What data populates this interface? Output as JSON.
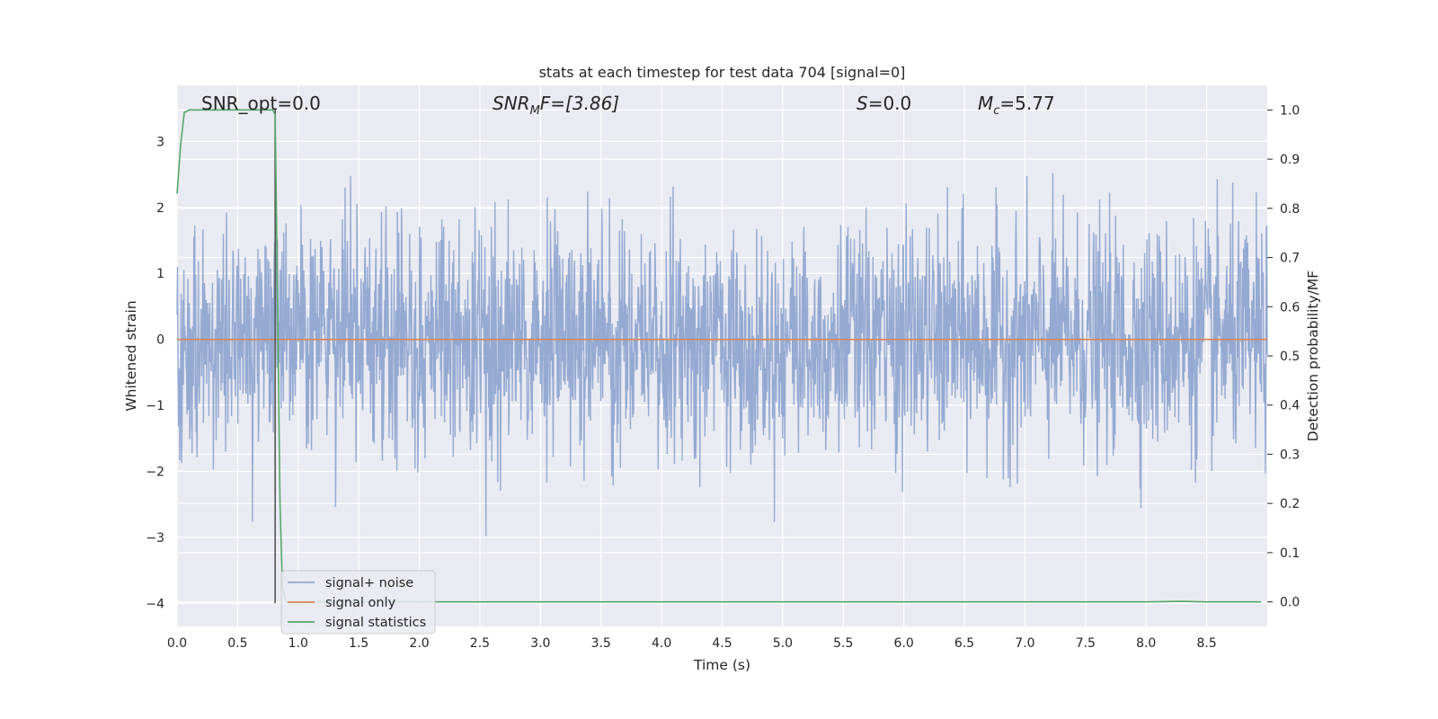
{
  "chart_data": {
    "type": "line",
    "title": "stats at each timestep for test data 704 [signal=0]",
    "xlabel": "Time (s)",
    "ylabel_left": "Whitened strain",
    "ylabel_right": "Detection probability/MF",
    "xlim": [
      0.0,
      9.0
    ],
    "ylim_left": [
      -4.35,
      3.85
    ],
    "ylim_right": [
      -0.05,
      1.05
    ],
    "x_ticks": [
      "0.0",
      "0.5",
      "1.0",
      "1.5",
      "2.0",
      "2.5",
      "3.0",
      "3.5",
      "4.0",
      "4.5",
      "5.0",
      "5.5",
      "6.0",
      "6.5",
      "7.0",
      "7.5",
      "8.0",
      "8.5"
    ],
    "y_ticks_left": [
      "−4",
      "−3",
      "−2",
      "−1",
      "0",
      "1",
      "2",
      "3"
    ],
    "y_ticks_right": [
      "0.0",
      "0.1",
      "0.2",
      "0.3",
      "0.4",
      "0.5",
      "0.6",
      "0.7",
      "0.8",
      "0.9",
      "1.0"
    ],
    "grid": true,
    "legend_position": "lower-left",
    "annotations": {
      "snr_opt": "SNR_opt=0.0",
      "snr_mf_main": "SNR",
      "snr_mf_sub": "M",
      "snr_mf_rest": "F=[3.86]",
      "s_main": "S",
      "s_rest": "=0.0",
      "mc_main": "M",
      "mc_sub": "c",
      "mc_rest": "=5.77"
    },
    "series": [
      {
        "name": "signal+ noise",
        "axis": "left",
        "color": "#8fa6d0",
        "description_values": "whitened noise, approx. Gaussian, sigma ~0.85, spikes up to 3.5 and down to -3.7",
        "x_range": [
          0.0,
          9.0
        ]
      },
      {
        "name": "signal only",
        "axis": "left",
        "color": "#dd8452",
        "x": [
          0.0,
          9.0
        ],
        "y": [
          0.0,
          0.0
        ]
      },
      {
        "name": "signal statistics",
        "axis": "right",
        "color": "#55a868",
        "x": [
          0.0,
          0.03,
          0.06,
          0.1,
          0.2,
          0.4,
          0.6,
          0.79,
          0.81,
          0.83,
          0.85,
          0.87,
          0.9,
          1.0,
          2.0,
          4.0,
          6.0,
          8.0,
          8.3,
          8.5,
          8.95
        ],
        "y": [
          0.83,
          0.93,
          0.995,
          1.0,
          1.0,
          1.0,
          1.0,
          1.0,
          0.99,
          0.6,
          0.2,
          0.03,
          0.0,
          0.0,
          0.0,
          0.0,
          0.0,
          0.0,
          0.001,
          0.0,
          0.0
        ]
      },
      {
        "name": "vertical marker",
        "axis": "left",
        "color": "#555555",
        "x": [
          0.81,
          0.81
        ],
        "y": [
          -4.0,
          3.5
        ]
      }
    ]
  },
  "colors": {
    "plot_bg": "#eaeaf2",
    "grid": "#ffffff",
    "noise": "#8fa6d0",
    "signal": "#dd8452",
    "stat": "#55a868",
    "marker": "#555555"
  }
}
